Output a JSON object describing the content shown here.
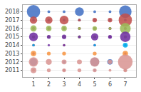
{
  "chart_data": {
    "type": "bubble",
    "series": [
      {
        "color": "#4472C4",
        "x": [
          1,
          2,
          3,
          4,
          5,
          6,
          7,
          1,
          2,
          3,
          4,
          5,
          6,
          7,
          1,
          2,
          3,
          4,
          5,
          6,
          7,
          1,
          2,
          3,
          4,
          5,
          6,
          7,
          1,
          3,
          5,
          1,
          1,
          3,
          5,
          6,
          1,
          3,
          5,
          7
        ],
        "y": [
          2018,
          2018,
          2018,
          2018,
          2018,
          2018,
          2018,
          2017,
          2017,
          2017,
          2017,
          2017,
          2017,
          2017,
          2016,
          2016,
          2016,
          2016,
          2016,
          2016,
          2016,
          2015,
          2015,
          2015,
          2015,
          2015,
          2015,
          2015,
          2014,
          2014,
          2014,
          2013,
          2012,
          2012,
          2012,
          2012,
          2011,
          2011,
          2011,
          2011
        ],
        "sizes": [
          180,
          8,
          8,
          80,
          8,
          8,
          160,
          8,
          8,
          8,
          8,
          8,
          8,
          8,
          8,
          8,
          8,
          8,
          8,
          8,
          8,
          8,
          8,
          8,
          8,
          8,
          8,
          8,
          5,
          5,
          5,
          5,
          55,
          8,
          80,
          30,
          5,
          5,
          5,
          5
        ]
      },
      {
        "color": "#C0504D",
        "x": [
          1,
          2,
          3,
          4,
          5,
          6,
          7,
          1,
          2,
          3,
          4,
          5,
          6,
          7,
          1,
          2,
          3,
          4,
          5,
          6,
          7,
          1,
          3,
          5,
          7,
          1,
          7,
          1,
          3,
          7
        ],
        "y": [
          2017,
          2017,
          2017,
          2017,
          2017,
          2017,
          2017,
          2016,
          2016,
          2016,
          2016,
          2016,
          2016,
          2016,
          2015,
          2015,
          2015,
          2015,
          2015,
          2015,
          2015,
          2014,
          2014,
          2014,
          2014,
          2013,
          2013,
          2011,
          2011,
          2011
        ],
        "sizes": [
          55,
          55,
          80,
          8,
          20,
          20,
          180,
          8,
          8,
          8,
          8,
          8,
          8,
          8,
          8,
          8,
          8,
          8,
          8,
          8,
          8,
          5,
          5,
          5,
          5,
          5,
          5,
          5,
          5,
          5
        ]
      },
      {
        "color": "#9BBB59",
        "x": [
          1,
          2,
          3,
          4,
          5,
          6,
          7,
          1,
          2,
          3,
          4,
          5,
          7,
          1,
          7,
          1,
          7
        ],
        "y": [
          2016,
          2016,
          2016,
          2016,
          2016,
          2016,
          2016,
          2015,
          2015,
          2015,
          2015,
          2015,
          2015,
          2014,
          2014,
          2011,
          2011
        ],
        "sizes": [
          40,
          30,
          30,
          8,
          20,
          8,
          120,
          8,
          8,
          8,
          8,
          8,
          8,
          5,
          5,
          5,
          5
        ]
      },
      {
        "color": "#7030A0",
        "x": [
          1,
          2,
          3,
          4,
          5,
          6,
          7,
          1,
          2,
          3,
          5,
          7,
          1,
          7,
          1,
          7
        ],
        "y": [
          2015,
          2015,
          2015,
          2015,
          2015,
          2015,
          2015,
          2014,
          2014,
          2014,
          2014,
          2014,
          2013,
          2013,
          2011,
          2011
        ],
        "sizes": [
          80,
          15,
          20,
          8,
          55,
          15,
          110,
          5,
          5,
          5,
          5,
          5,
          5,
          5,
          5,
          5
        ]
      },
      {
        "color": "#00B0F0",
        "x": [
          7,
          1,
          5
        ],
        "y": [
          2014,
          2014,
          2014
        ],
        "sizes": [
          25,
          5,
          5
        ]
      },
      {
        "color": "#F79646",
        "x": [
          1,
          2,
          3,
          5,
          7,
          1,
          7
        ],
        "y": [
          2013,
          2013,
          2013,
          2013,
          2013,
          2011,
          2011
        ],
        "sizes": [
          30,
          15,
          15,
          15,
          30,
          5,
          5
        ]
      },
      {
        "color": "#D99694",
        "x": [
          1,
          2,
          3,
          4,
          5,
          6,
          7,
          1,
          2,
          3,
          4,
          5,
          6,
          7
        ],
        "y": [
          2012,
          2012,
          2012,
          2012,
          2012,
          2012,
          2012,
          2011,
          2011,
          2011,
          2011,
          2011,
          2011,
          2011
        ],
        "sizes": [
          90,
          35,
          25,
          25,
          90,
          20,
          220,
          35,
          15,
          15,
          15,
          15,
          8,
          15
        ]
      }
    ],
    "xlim": [
      0.3,
      7.7
    ],
    "ylim": [
      2010.2,
      2018.8
    ],
    "xticks": [
      1,
      2,
      3,
      4,
      5,
      6,
      7
    ],
    "yticks": [
      2011,
      2012,
      2013,
      2014,
      2015,
      2016,
      2017,
      2018
    ],
    "grid": "y"
  }
}
